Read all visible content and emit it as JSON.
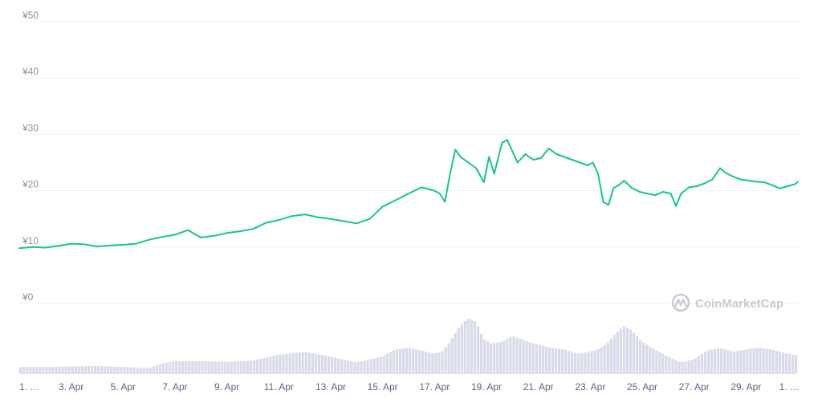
{
  "watermark": {
    "text": "CoinMarketCap",
    "icon": "coinmarketcap-logo-icon"
  },
  "colors": {
    "price_line": "#16c784",
    "volume_bar": "#d9dbe9",
    "grid": "#eff2f5",
    "axis_text": "#58667e"
  },
  "chart_data": [
    {
      "type": "line",
      "title": "",
      "xlabel": "",
      "ylabel": "",
      "ylim": [
        0,
        50
      ],
      "yticks": [
        "¥0",
        "¥10",
        "¥20",
        "¥30",
        "¥40",
        "¥50"
      ],
      "ytick_values": [
        0,
        10,
        20,
        30,
        40,
        50
      ],
      "x_tick_labels": [
        "1. …",
        "3. Apr",
        "5. Apr",
        "7. Apr",
        "9. Apr",
        "11. Apr",
        "13. Apr",
        "15. Apr",
        "17. Apr",
        "19. Apr",
        "21. Apr",
        "23. Apr",
        "25. Apr",
        "27. Apr",
        "29. Apr",
        "1. …"
      ],
      "x_tick_days": [
        1,
        3,
        5,
        7,
        9,
        11,
        13,
        15,
        17,
        19,
        21,
        23,
        25,
        27,
        29,
        31
      ],
      "grid": true,
      "series": [
        {
          "x": [
            1,
            1.5,
            2,
            2.5,
            3,
            3.5,
            4,
            4.5,
            5,
            5.5,
            6,
            6.5,
            7,
            7.5,
            8,
            8.5,
            9,
            9.5,
            10,
            10.5,
            11,
            11.5,
            12,
            12.5,
            13,
            13.5,
            14,
            14.5,
            15,
            15.5,
            16,
            16.5,
            17,
            17.2,
            17.4,
            17.6,
            17.8,
            18,
            18.3,
            18.6,
            18.9,
            19.1,
            19.3,
            19.6,
            19.8,
            20,
            20.2,
            20.5,
            20.8,
            21.1,
            21.4,
            21.7,
            22,
            22.3,
            22.6,
            22.9,
            23.1,
            23.3,
            23.5,
            23.7,
            23.9,
            24.1,
            24.3,
            24.6,
            24.9,
            25.2,
            25.5,
            25.8,
            26.1,
            26.3,
            26.5,
            26.8,
            27.1,
            27.4,
            27.7,
            28,
            28.2,
            28.5,
            28.8,
            29.1,
            29.4,
            29.7,
            30,
            30.3,
            30.6,
            30.9,
            31
          ],
          "values": [
            9.8,
            10.0,
            9.9,
            10.2,
            10.6,
            10.5,
            10.1,
            10.3,
            10.4,
            10.6,
            11.3,
            11.8,
            12.2,
            13.0,
            11.7,
            12.0,
            12.5,
            12.8,
            13.2,
            14.3,
            14.8,
            15.5,
            15.8,
            15.3,
            15.0,
            14.6,
            14.2,
            15.0,
            17.2,
            18.3,
            19.5,
            20.6,
            20.0,
            19.5,
            18.0,
            23.0,
            27.3,
            26.0,
            25.0,
            24.0,
            21.5,
            26.0,
            23.0,
            28.5,
            29.0,
            27.0,
            25.0,
            26.5,
            25.5,
            25.8,
            27.5,
            26.5,
            26.0,
            25.5,
            25.0,
            24.5,
            25.0,
            23.0,
            18.0,
            17.5,
            20.5,
            21.0,
            21.8,
            20.5,
            19.8,
            19.5,
            19.2,
            19.8,
            19.5,
            17.3,
            19.5,
            20.6,
            20.8,
            21.3,
            22.0,
            24.0,
            23.2,
            22.5,
            22.0,
            21.8,
            21.6,
            21.5,
            21.0,
            20.4,
            20.8,
            21.2,
            21.6
          ]
        }
      ]
    },
    {
      "type": "bar",
      "title": "",
      "xlabel": "",
      "ylabel": "",
      "ylim": [
        0,
        100
      ],
      "x": [
        1,
        2,
        3,
        4,
        5,
        6,
        6.5,
        7,
        8,
        9,
        10,
        11,
        12,
        13,
        14,
        15,
        15.5,
        16,
        16.5,
        17,
        17.3,
        17.6,
        18,
        18.3,
        18.6,
        18.9,
        19.2,
        19.6,
        20,
        20.5,
        21,
        21.5,
        22,
        22.5,
        23,
        23.3,
        23.6,
        24,
        24.3,
        24.6,
        25,
        25.5,
        26,
        26.5,
        27,
        27.5,
        28,
        28.5,
        29,
        29.5,
        30,
        30.5,
        31
      ],
      "values": [
        12,
        12,
        13,
        14,
        12,
        10,
        18,
        22,
        22,
        21,
        23,
        33,
        38,
        30,
        20,
        30,
        42,
        45,
        40,
        35,
        38,
        55,
        83,
        95,
        90,
        60,
        52,
        55,
        65,
        57,
        50,
        45,
        42,
        35,
        38,
        42,
        50,
        70,
        82,
        75,
        55,
        42,
        30,
        20,
        25,
        40,
        45,
        38,
        42,
        45,
        42,
        36,
        32
      ]
    }
  ]
}
